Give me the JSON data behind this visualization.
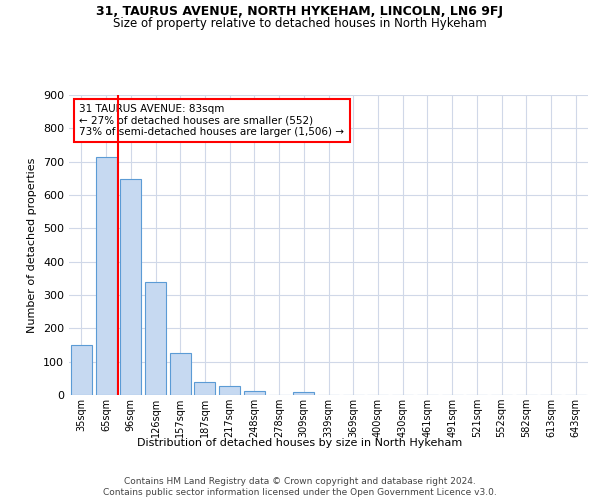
{
  "title": "31, TAURUS AVENUE, NORTH HYKEHAM, LINCOLN, LN6 9FJ",
  "subtitle": "Size of property relative to detached houses in North Hykeham",
  "xlabel": "Distribution of detached houses by size in North Hykeham",
  "ylabel": "Number of detached properties",
  "categories": [
    "35sqm",
    "65sqm",
    "96sqm",
    "126sqm",
    "157sqm",
    "187sqm",
    "217sqm",
    "248sqm",
    "278sqm",
    "309sqm",
    "339sqm",
    "369sqm",
    "400sqm",
    "430sqm",
    "461sqm",
    "491sqm",
    "521sqm",
    "552sqm",
    "582sqm",
    "613sqm",
    "643sqm"
  ],
  "bar_heights": [
    150,
    715,
    648,
    340,
    125,
    40,
    28,
    12,
    0,
    10,
    0,
    0,
    0,
    0,
    0,
    0,
    0,
    0,
    0,
    0,
    0
  ],
  "bar_color": "#c6d9f1",
  "bar_edge_color": "#5b9bd5",
  "annotation_text": "31 TAURUS AVENUE: 83sqm\n← 27% of detached houses are smaller (552)\n73% of semi-detached houses are larger (1,506) →",
  "annotation_box_color": "white",
  "annotation_box_edge_color": "red",
  "vline_color": "red",
  "vline_pos": 1.5,
  "ylim": [
    0,
    900
  ],
  "yticks": [
    0,
    100,
    200,
    300,
    400,
    500,
    600,
    700,
    800,
    900
  ],
  "footer": "Contains HM Land Registry data © Crown copyright and database right 2024.\nContains public sector information licensed under the Open Government Licence v3.0.",
  "background_color": "#ffffff",
  "grid_color": "#d0d8e8",
  "title_fontsize": 9,
  "subtitle_fontsize": 8.5,
  "ylabel_fontsize": 8,
  "xlabel_fontsize": 8,
  "tick_fontsize": 7,
  "footer_fontsize": 6.5,
  "annotation_fontsize": 7.5
}
